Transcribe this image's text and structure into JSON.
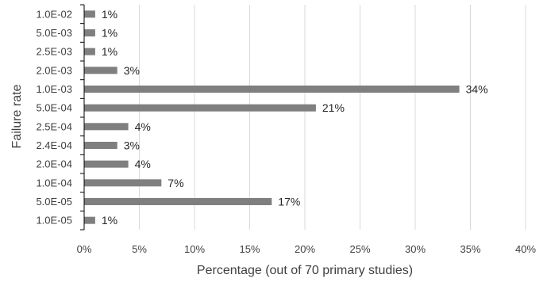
{
  "chart_data": {
    "type": "bar",
    "orientation": "horizontal",
    "categories": [
      "1.0E-05",
      "5.0E-05",
      "1.0E-04",
      "2.0E-04",
      "2.4E-04",
      "2.5E-04",
      "5.0E-04",
      "1.0E-03",
      "2.0E-03",
      "2.5E-03",
      "5.0E-03",
      "1.0E-02"
    ],
    "values": [
      1,
      17,
      7,
      4,
      3,
      4,
      21,
      34,
      3,
      1,
      1,
      1
    ],
    "data_labels": [
      "1%",
      "17%",
      "7%",
      "4%",
      "3%",
      "4%",
      "21%",
      "34%",
      "3%",
      "1%",
      "1%",
      "1%"
    ],
    "x_ticks": [
      0,
      5,
      10,
      15,
      20,
      25,
      30,
      35,
      40
    ],
    "x_tick_labels": [
      "0%",
      "5%",
      "10%",
      "15%",
      "20%",
      "25%",
      "30%",
      "35%",
      "40%"
    ],
    "xlim": [
      0,
      40
    ],
    "xlabel": "Percentage (out of 70 primary studies)",
    "ylabel": "Failure rate",
    "title": "",
    "grid": "vertical",
    "legend": "none",
    "bar_color": "#7f7f7f",
    "grid_color": "#d9d9d9",
    "axis_color": "#000000"
  }
}
